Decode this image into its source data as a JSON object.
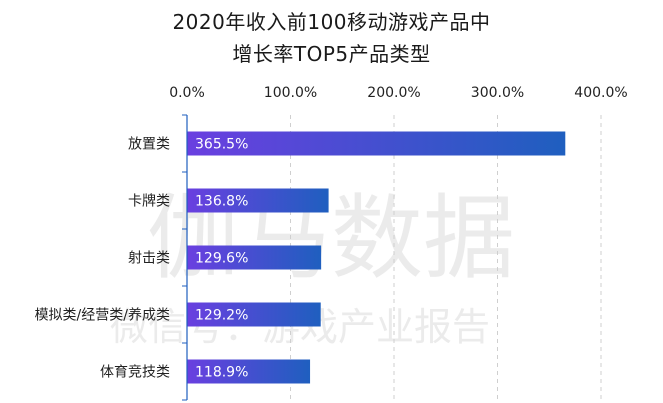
{
  "chart_data": {
    "type": "bar",
    "orientation": "horizontal",
    "title_line1": "2020年收入前100移动游戏产品中",
    "title_line2": "增长率TOP5产品类型",
    "categories": [
      "放置类",
      "卡牌类",
      "射击类",
      "模拟类/经营类/养成类",
      "体育竞技类"
    ],
    "values": [
      365.5,
      136.8,
      129.6,
      129.2,
      118.9
    ],
    "value_labels": [
      "365.5%",
      "136.8%",
      "129.6%",
      "129.2%",
      "118.9%"
    ],
    "x_ticks": [
      0,
      100,
      200,
      300,
      400
    ],
    "x_tick_labels": [
      "0.0%",
      "100.0%",
      "200.0%",
      "300.0%",
      "400.0%"
    ],
    "xlim": [
      0,
      400
    ],
    "grid": true,
    "bar_gradient": [
      "#6a3fe0",
      "#1f5fbf"
    ]
  },
  "watermark": {
    "line1": "伽马数据",
    "line2": "微信号：游戏产业报告"
  }
}
